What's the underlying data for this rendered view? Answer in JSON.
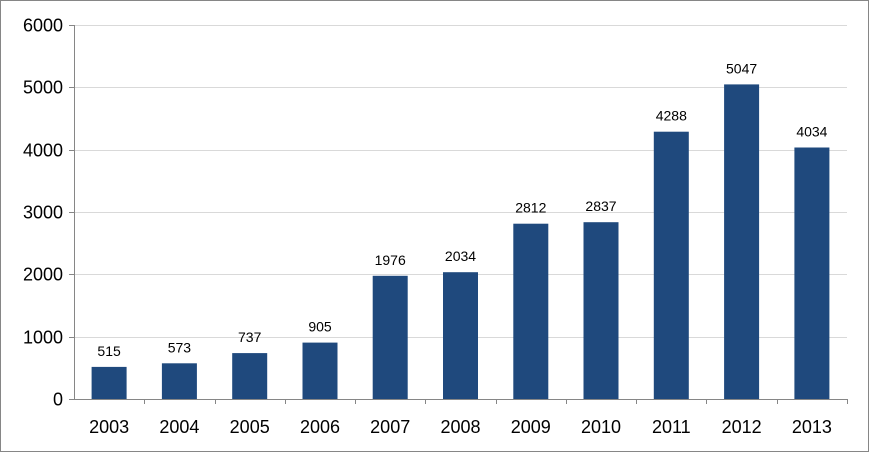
{
  "chart_data": {
    "type": "bar",
    "categories": [
      "2003",
      "2004",
      "2005",
      "2006",
      "2007",
      "2008",
      "2009",
      "2010",
      "2011",
      "2012",
      "2013"
    ],
    "values": [
      515,
      573,
      737,
      905,
      1976,
      2034,
      2812,
      2837,
      4288,
      5047,
      4034
    ],
    "y_ticks": [
      "0",
      "1000",
      "2000",
      "3000",
      "4000",
      "5000",
      "6000"
    ],
    "ylim": [
      0,
      6000
    ],
    "title": "",
    "xlabel": "",
    "ylabel": "",
    "grid": true,
    "legend": "none",
    "bar_color": "#1F497D",
    "grid_color": "#D9D9D9",
    "axis_color": "#868686"
  }
}
